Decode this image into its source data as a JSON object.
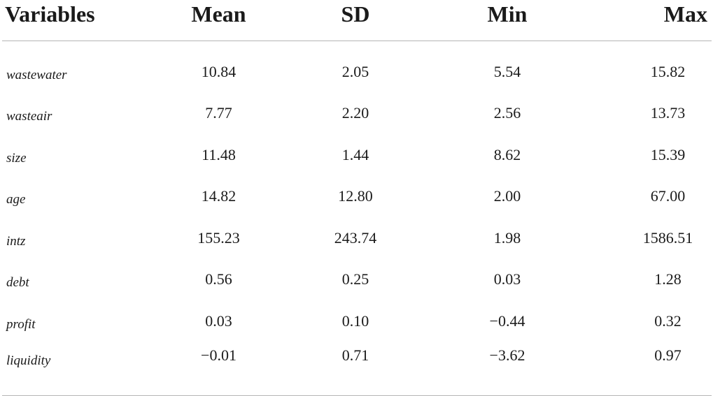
{
  "table": {
    "headers": {
      "variables": "Variables",
      "mean": "Mean",
      "sd": "SD",
      "min": "Min",
      "max": "Max"
    },
    "rows": [
      {
        "name": "wastewater",
        "mean": "10.84",
        "sd": "2.05",
        "min": "5.54",
        "max": "15.82"
      },
      {
        "name": "wasteair",
        "mean": "7.77",
        "sd": "2.20",
        "min": "2.56",
        "max": "13.73"
      },
      {
        "name": "size",
        "mean": "11.48",
        "sd": "1.44",
        "min": "8.62",
        "max": "15.39"
      },
      {
        "name": "age",
        "mean": "14.82",
        "sd": "12.80",
        "min": "2.00",
        "max": "67.00"
      },
      {
        "name": "intz",
        "mean": "155.23",
        "sd": "243.74",
        "min": "1.98",
        "max": "1586.51"
      },
      {
        "name": "debt",
        "mean": "0.56",
        "sd": "0.25",
        "min": "0.03",
        "max": "1.28"
      },
      {
        "name": "profit",
        "mean": "0.03",
        "sd": "0.10",
        "min": "−0.44",
        "max": "0.32"
      },
      {
        "name": "liquidity",
        "mean": "−0.01",
        "sd": "0.71",
        "min": "−3.62",
        "max": "0.97"
      }
    ]
  }
}
